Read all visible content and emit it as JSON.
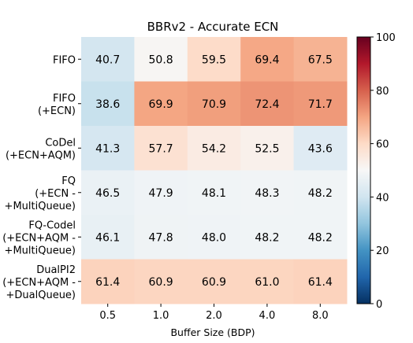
{
  "chart_data": {
    "type": "heatmap",
    "title": "BBRv2 - Accurate ECN",
    "xlabel": "Buffer Size (BDP)",
    "ylabel": "",
    "x_categories": [
      "0.5",
      "1.0",
      "2.0",
      "4.0",
      "8.0"
    ],
    "y_categories": [
      [
        "FIFO"
      ],
      [
        "FIFO",
        "(+ECN)"
      ],
      [
        "CoDel",
        "(+ECN+AQM)"
      ],
      [
        "FQ",
        "(+ECN -",
        "+MultiQueue)"
      ],
      [
        "FQ-Codel",
        "(+ECN+AQM -",
        "+MultiQueue)"
      ],
      [
        "DualPI2",
        "(+ECN+AQM -",
        "+DualQueue)"
      ]
    ],
    "values": [
      [
        40.7,
        50.8,
        59.5,
        69.4,
        67.5
      ],
      [
        38.6,
        69.9,
        70.9,
        72.4,
        71.7
      ],
      [
        41.3,
        57.7,
        54.2,
        52.5,
        43.6
      ],
      [
        46.5,
        47.9,
        48.1,
        48.3,
        48.2
      ],
      [
        46.1,
        47.8,
        48.0,
        48.2,
        48.2
      ],
      [
        61.4,
        60.9,
        60.9,
        61.0,
        61.4
      ]
    ],
    "value_labels": [
      [
        "40.7",
        "50.8",
        "59.5",
        "69.4",
        "67.5"
      ],
      [
        "38.6",
        "69.9",
        "70.9",
        "72.4",
        "71.7"
      ],
      [
        "41.3",
        "57.7",
        "54.2",
        "52.5",
        "43.6"
      ],
      [
        "46.5",
        "47.9",
        "48.1",
        "48.3",
        "48.2"
      ],
      [
        "46.1",
        "47.8",
        "48.0",
        "48.2",
        "48.2"
      ],
      [
        "61.4",
        "60.9",
        "60.9",
        "61.0",
        "61.4"
      ]
    ],
    "colorbar": {
      "range": [
        0,
        100
      ],
      "ticks": [
        "0",
        "20",
        "40",
        "60",
        "80",
        "100"
      ],
      "colormap": "RdBu_r"
    }
  }
}
